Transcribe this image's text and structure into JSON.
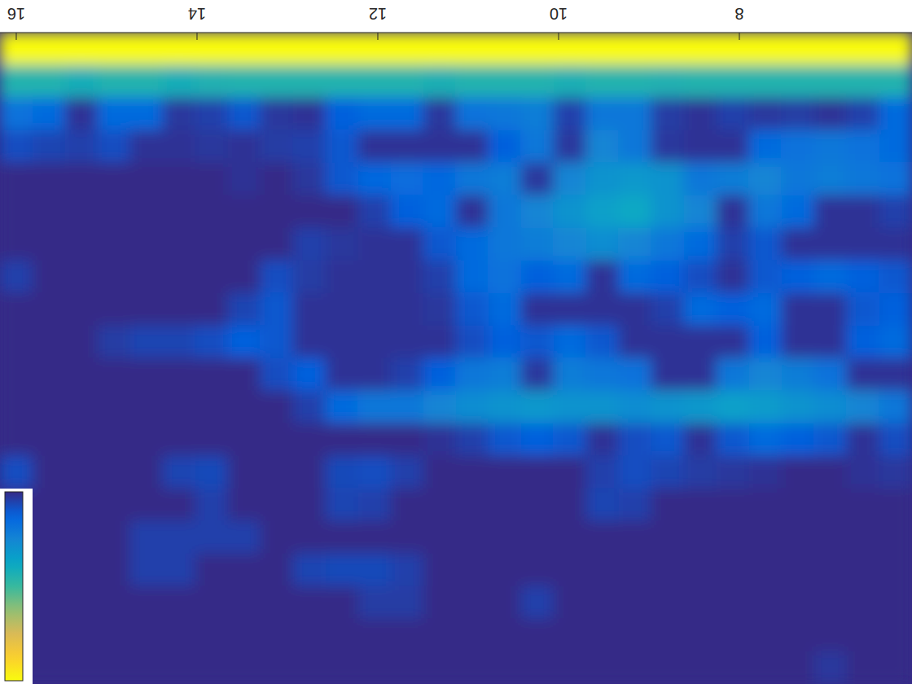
{
  "chart_data": {
    "type": "heatmap",
    "xlim": [
      16.18,
      6.09
    ],
    "xticks": [
      16,
      14,
      12,
      10,
      8
    ],
    "tick_labels": "x",
    "colorbar": {
      "range": [
        0,
        1
      ]
    },
    "cells": [
      [
        1,
        1,
        1,
        1,
        1,
        1,
        1,
        1,
        1,
        1,
        1,
        1,
        1,
        1,
        1,
        1,
        1,
        1,
        1,
        1,
        1,
        1,
        1,
        1,
        1,
        1,
        1,
        1
      ],
      [
        0.45,
        0.45,
        0.42,
        0.45,
        0.45,
        0.42,
        0.44,
        0.45,
        0.45,
        0.45,
        0.45,
        0.45,
        0.45,
        0.43,
        0.45,
        0.45,
        0.45,
        0.43,
        0.45,
        0.45,
        0.44,
        0.45,
        0.45,
        0.45,
        0.45,
        0.45,
        0.45,
        0.45
      ],
      [
        0.18,
        0.15,
        0.02,
        0.15,
        0.15,
        0.03,
        0.05,
        0.1,
        0.03,
        0.02,
        0.12,
        0.15,
        0.15,
        0.03,
        0.18,
        0.2,
        0.22,
        0.05,
        0.2,
        0.2,
        0.04,
        0.02,
        0.05,
        0.03,
        0.04,
        0.02,
        0.05,
        0.15
      ],
      [
        0.08,
        0.06,
        0.05,
        0.08,
        0.02,
        0.02,
        0.03,
        0.02,
        0.04,
        0.05,
        0.1,
        0.02,
        0.02,
        0.02,
        0.02,
        0.12,
        0.2,
        0.03,
        0.25,
        0.2,
        0.03,
        0.02,
        0.02,
        0.15,
        0.18,
        0.2,
        0.18,
        0.15
      ],
      [
        0,
        0,
        0,
        0,
        0,
        0,
        0,
        0.02,
        0,
        0.03,
        0.1,
        0.14,
        0.16,
        0.14,
        0.2,
        0.22,
        0.03,
        0.25,
        0.3,
        0.32,
        0.3,
        0.2,
        0.22,
        0.25,
        0.2,
        0.22,
        0.2,
        0.18
      ],
      [
        0,
        0,
        0,
        0,
        0,
        0,
        0,
        0,
        0,
        0,
        0,
        0.05,
        0.12,
        0.15,
        0.02,
        0.2,
        0.25,
        0.3,
        0.35,
        0.38,
        0.3,
        0.25,
        0.02,
        0.2,
        0.15,
        0.02,
        0.02,
        0.05
      ],
      [
        0,
        0,
        0,
        0,
        0,
        0,
        0,
        0,
        0,
        0.05,
        0.03,
        0.02,
        0.02,
        0.1,
        0.15,
        0.2,
        0.22,
        0.25,
        0.28,
        0.25,
        0.2,
        0.15,
        0.05,
        0.1,
        0.02,
        0.02,
        0.02,
        0.02
      ],
      [
        0.05,
        0,
        0,
        0,
        0,
        0,
        0,
        0,
        0.08,
        0.04,
        0.02,
        0.02,
        0.02,
        0.05,
        0.15,
        0.18,
        0.12,
        0.15,
        0.02,
        0.15,
        0.12,
        0.08,
        0.02,
        0.1,
        0.12,
        0.15,
        0.12,
        0.1
      ],
      [
        0,
        0,
        0,
        0,
        0,
        0,
        0,
        0.06,
        0.1,
        0.02,
        0.02,
        0.02,
        0.02,
        0.03,
        0.1,
        0.15,
        0.02,
        0.02,
        0.02,
        0.02,
        0.05,
        0.15,
        0.12,
        0.15,
        0.02,
        0.02,
        0.1,
        0.12
      ],
      [
        0,
        0,
        0,
        0.04,
        0.06,
        0.06,
        0.08,
        0.12,
        0.1,
        0.02,
        0.02,
        0.02,
        0.02,
        0.02,
        0.08,
        0.12,
        0.1,
        0.15,
        0.1,
        0.02,
        0.02,
        0.02,
        0.02,
        0.12,
        0.02,
        0.02,
        0.12,
        0.15
      ],
      [
        0,
        0,
        0,
        0,
        0,
        0,
        0,
        0,
        0.08,
        0.12,
        0.02,
        0.02,
        0.05,
        0.12,
        0.2,
        0.22,
        0.03,
        0.22,
        0.2,
        0.18,
        0.02,
        0.02,
        0.2,
        0.25,
        0.22,
        0.18,
        0.02,
        0.02
      ],
      [
        0,
        0,
        0,
        0,
        0,
        0,
        0,
        0,
        0,
        0.05,
        0.15,
        0.2,
        0.2,
        0.25,
        0.28,
        0.3,
        0.32,
        0.3,
        0.3,
        0.28,
        0.3,
        0.32,
        0.35,
        0.33,
        0.3,
        0.28,
        0.25,
        0.2
      ],
      [
        0,
        0,
        0,
        0,
        0,
        0,
        0,
        0,
        0,
        0,
        0,
        0,
        0,
        0.02,
        0.05,
        0.1,
        0.12,
        0.1,
        0.02,
        0.08,
        0.1,
        0.02,
        0.1,
        0.15,
        0.12,
        0.1,
        0.02,
        0.08
      ],
      [
        0.08,
        0,
        0,
        0,
        0,
        0.06,
        0.07,
        0,
        0,
        0,
        0.07,
        0.08,
        0.05,
        0,
        0,
        0,
        0,
        0,
        0.05,
        0.08,
        0.06,
        0.04,
        0.03,
        0.02,
        0,
        0,
        0.02,
        0.03
      ],
      [
        0,
        0,
        0,
        0,
        0,
        0,
        0.05,
        0,
        0,
        0,
        0.06,
        0.05,
        0,
        0,
        0,
        0,
        0,
        0,
        0.06,
        0.05,
        0,
        0,
        0,
        0,
        0,
        0,
        0,
        0
      ],
      [
        0,
        0,
        0,
        0,
        0.05,
        0.05,
        0.05,
        0.05,
        0,
        0,
        0,
        0,
        0,
        0,
        0,
        0,
        0,
        0,
        0,
        0,
        0,
        0,
        0,
        0,
        0,
        0,
        0,
        0
      ],
      [
        0,
        0,
        0,
        0,
        0.05,
        0.05,
        0,
        0,
        0,
        0.06,
        0.07,
        0.07,
        0.05,
        0,
        0,
        0,
        0,
        0,
        0,
        0,
        0,
        0,
        0,
        0,
        0,
        0,
        0,
        0
      ],
      [
        0,
        0,
        0,
        0,
        0,
        0,
        0,
        0,
        0,
        0,
        0,
        0.04,
        0.04,
        0,
        0,
        0,
        0.05,
        0,
        0,
        0,
        0,
        0,
        0,
        0,
        0,
        0,
        0,
        0
      ],
      [
        0,
        0,
        0,
        0,
        0,
        0,
        0,
        0,
        0,
        0,
        0,
        0,
        0,
        0,
        0,
        0,
        0,
        0,
        0,
        0,
        0,
        0,
        0,
        0,
        0,
        0,
        0,
        0
      ],
      [
        0,
        0,
        0,
        0,
        0,
        0,
        0,
        0,
        0,
        0,
        0,
        0,
        0,
        0,
        0,
        0,
        0,
        0,
        0,
        0,
        0,
        0,
        0,
        0,
        0,
        0.03,
        0,
        0
      ]
    ]
  }
}
